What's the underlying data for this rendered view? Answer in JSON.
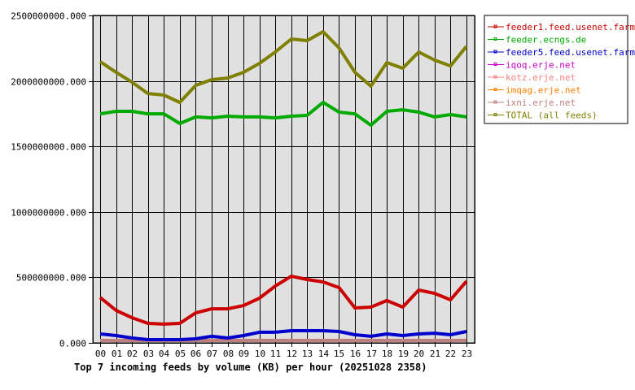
{
  "chart_data": {
    "type": "line",
    "title": "Top 7 incoming feeds by volume (KB) per hour (20251028 2358)",
    "xlabel": "",
    "ylabel": "",
    "ylim": [
      0,
      2500000000
    ],
    "grid": true,
    "legend_position": "right",
    "y_ticks": [
      "0.000",
      "500000000.000",
      "1000000000.000",
      "1500000000.000",
      "2000000000.000",
      "2500000000.000"
    ],
    "y_tick_values": [
      0,
      500000000,
      1000000000,
      1500000000,
      2000000000,
      2500000000
    ],
    "categories": [
      "00",
      "01",
      "02",
      "03",
      "04",
      "05",
      "06",
      "07",
      "08",
      "09",
      "10",
      "11",
      "12",
      "13",
      "14",
      "15",
      "16",
      "17",
      "18",
      "19",
      "20",
      "21",
      "22",
      "23"
    ],
    "series": [
      {
        "name": "feeder1.feed.usenet.farm",
        "color": "#cc0000",
        "values": [
          347000000,
          248000000,
          192000000,
          149000000,
          143000000,
          149000000,
          229000000,
          260000000,
          260000000,
          285000000,
          341000000,
          434000000,
          509000000,
          484000000,
          465000000,
          422000000,
          267000000,
          273000000,
          323000000,
          273000000,
          403000000,
          378000000,
          329000000,
          471000000
        ]
      },
      {
        "name": "feeder.ecngs.de",
        "color": "#00aa00",
        "values": [
          1749000000,
          1768000000,
          1768000000,
          1749000000,
          1749000000,
          1675000000,
          1725000000,
          1718000000,
          1731000000,
          1725000000,
          1725000000,
          1718000000,
          1731000000,
          1737000000,
          1836000000,
          1762000000,
          1749000000,
          1662000000,
          1768000000,
          1780000000,
          1762000000,
          1725000000,
          1743000000,
          1725000000
        ]
      },
      {
        "name": "feeder5.feed.usenet.farm",
        "color": "#0000cc",
        "values": [
          68000000,
          56000000,
          37000000,
          25000000,
          25000000,
          25000000,
          31000000,
          50000000,
          37000000,
          56000000,
          81000000,
          81000000,
          93000000,
          93000000,
          93000000,
          87000000,
          62000000,
          50000000,
          68000000,
          56000000,
          68000000,
          74000000,
          62000000,
          87000000
        ]
      },
      {
        "name": "iqoq.erje.net",
        "color": "#cc00cc",
        "values": [
          0,
          0,
          0,
          0,
          0,
          0,
          0,
          0,
          0,
          0,
          0,
          0,
          0,
          0,
          0,
          0,
          0,
          0,
          0,
          0,
          0,
          0,
          0,
          0
        ]
      },
      {
        "name": "kotz.erje.net",
        "color": "#ff8080",
        "values": [
          0,
          0,
          0,
          0,
          0,
          0,
          0,
          0,
          0,
          0,
          0,
          0,
          0,
          0,
          0,
          0,
          0,
          0,
          0,
          0,
          0,
          0,
          0,
          0
        ]
      },
      {
        "name": "imqag.erje.net",
        "color": "#ff8000",
        "values": [
          0,
          0,
          0,
          0,
          0,
          0,
          0,
          0,
          0,
          0,
          0,
          0,
          0,
          0,
          0,
          0,
          0,
          0,
          0,
          0,
          0,
          0,
          0,
          0
        ]
      },
      {
        "name": "ixni.erje.net",
        "color": "#c08080",
        "values": [
          0,
          0,
          0,
          0,
          0,
          0,
          0,
          0,
          0,
          0,
          0,
          0,
          0,
          0,
          0,
          0,
          0,
          0,
          0,
          0,
          0,
          0,
          0,
          0
        ]
      },
      {
        "name": "TOTAL (all feeds)",
        "color": "#808000",
        "values": [
          2147000000,
          2066000000,
          1991000000,
          1904000000,
          1892000000,
          1836000000,
          1966000000,
          2010000000,
          2022000000,
          2066000000,
          2134000000,
          2221000000,
          2320000000,
          2308000000,
          2376000000,
          2252000000,
          2066000000,
          1960000000,
          2140000000,
          2097000000,
          2221000000,
          2159000000,
          2115000000,
          2264000000
        ]
      }
    ]
  },
  "colors": {
    "plot_background": "#e0e0e0",
    "grid": "#000000",
    "page_background": "#ffffff"
  }
}
